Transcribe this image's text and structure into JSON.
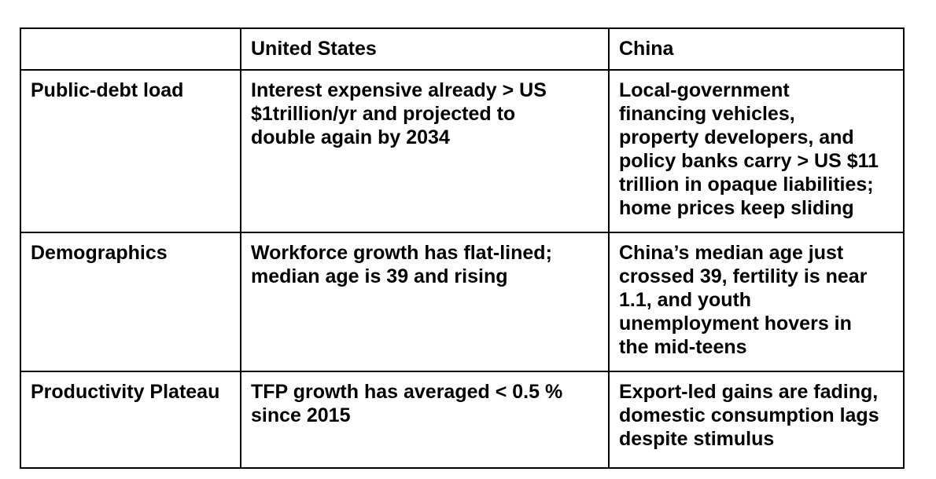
{
  "table": {
    "headers": [
      "",
      "United States",
      "China"
    ],
    "rows": [
      {
        "label": "Public-debt load",
        "us": "Interest expensive already > US\n$1trillion/yr and projected to\ndouble again by 2034",
        "china": "Local-government\nfinancing vehicles,\nproperty developers, and\npolicy banks carry > US $11\ntrillion in opaque liabilities;\nhome prices keep sliding"
      },
      {
        "label": "Demographics",
        "us": "Workforce growth has flat-lined;\nmedian age is 39 and rising",
        "china": "China’s median age just\ncrossed 39, fertility is near\n1.1, and youth\nunemployment hovers in\nthe mid-teens"
      },
      {
        "label": "Productivity Plateau",
        "us": "TFP growth has averaged < 0.5 %\nsince 2015",
        "china": "Export-led gains are fading,\ndomestic consumption lags\ndespite stimulus"
      }
    ]
  },
  "colors": {
    "border": "#000000",
    "text": "#000000",
    "background": "#ffffff"
  }
}
